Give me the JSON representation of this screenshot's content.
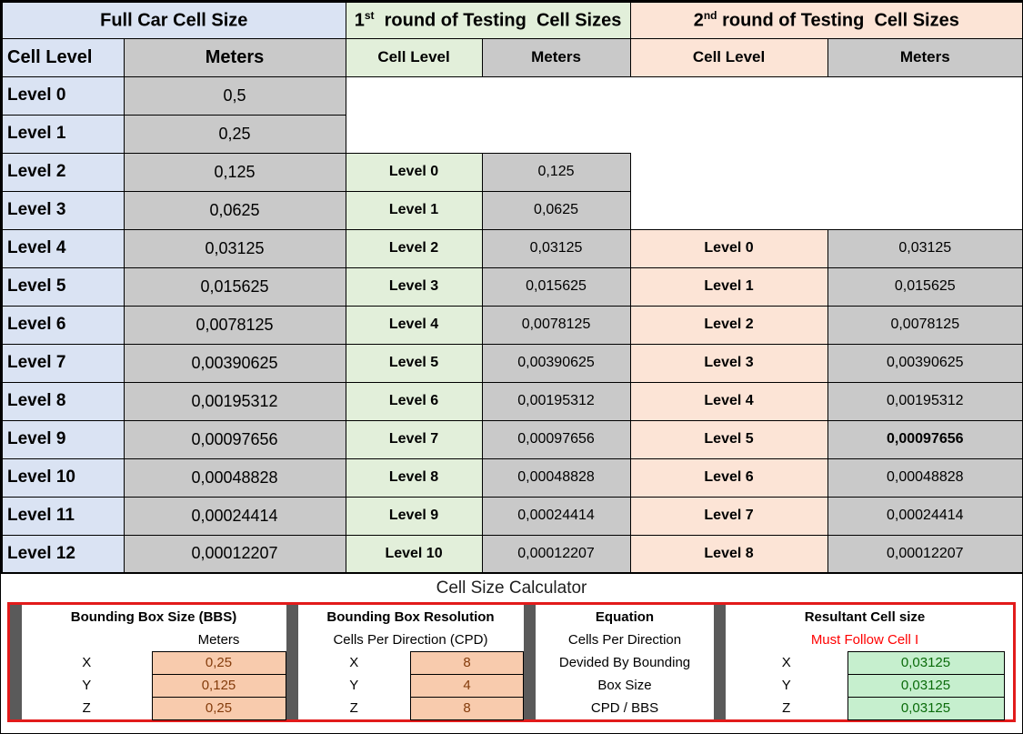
{
  "colors": {
    "full_car_fill": "#dae3f3",
    "round1_fill": "#e2efda",
    "round2_fill": "#fce4d6",
    "meters_fill": "#c9c9c9",
    "input_fill": "#f8cbad",
    "input_text": "#843c0c",
    "result_fill": "#c6efce",
    "result_text": "#0a6b0a",
    "warning_text": "#ff0000",
    "calculator_border": "#e21b1b",
    "separator_bar": "#5a5a5a"
  },
  "main_table": {
    "sections": [
      {
        "title_pre": "Full Car Cell Size",
        "title_sup": "",
        "title_post": ""
      },
      {
        "title_pre": "1",
        "title_sup": "st",
        "title_post": "  round of Testing  Cell Sizes"
      },
      {
        "title_pre": "2",
        "title_sup": "nd",
        "title_post": " round of Testing  Cell Sizes"
      }
    ],
    "columns": [
      "Cell Level",
      "Meters",
      "Cell Level",
      "Meters",
      "Cell Level",
      "Meters"
    ],
    "rows": [
      [
        "Level 0",
        "0,5",
        "",
        "",
        "",
        ""
      ],
      [
        "Level 1",
        "0,25",
        "",
        "",
        "",
        ""
      ],
      [
        "Level 2",
        "0,125",
        "Level 0",
        "0,125",
        "",
        ""
      ],
      [
        "Level 3",
        "0,0625",
        "Level 1",
        "0,0625",
        "",
        ""
      ],
      [
        "Level 4",
        "0,03125",
        "Level 2",
        "0,03125",
        "Level 0",
        "0,03125"
      ],
      [
        "Level 5",
        "0,015625",
        "Level 3",
        "0,015625",
        "Level 1",
        "0,015625"
      ],
      [
        "Level 6",
        "0,0078125",
        "Level 4",
        "0,0078125",
        "Level 2",
        "0,0078125"
      ],
      [
        "Level 7",
        "0,00390625",
        "Level 5",
        "0,00390625",
        "Level 3",
        "0,00390625"
      ],
      [
        "Level 8",
        "0,00195312",
        "Level 6",
        "0,00195312",
        "Level 4",
        "0,00195312"
      ],
      [
        "Level 9",
        "0,00097656",
        "Level 7",
        "0,00097656",
        "Level 5",
        "0,00097656"
      ],
      [
        "Level 10",
        "0,00048828",
        "Level 8",
        "0,00048828",
        "Level 6",
        "0,00048828"
      ],
      [
        "Level 11",
        "0,00024414",
        "Level 9",
        "0,00024414",
        "Level 7",
        "0,00024414"
      ],
      [
        "Level 12",
        "0,00012207",
        "Level 10",
        "0,00012207",
        "Level 8",
        "0,00012207"
      ]
    ],
    "bold_cells": [
      [
        9,
        5
      ]
    ]
  },
  "calculator": {
    "title": "Cell Size Calculator",
    "bbs": {
      "title": "Bounding Box Size (BBS)",
      "subheader": "Meters",
      "rows": [
        [
          "X",
          "0,25"
        ],
        [
          "Y",
          "0,125"
        ],
        [
          "Z",
          "0,25"
        ]
      ]
    },
    "resolution": {
      "title": "Bounding Box Resolution",
      "subheader": "Cells Per Direction (CPD)",
      "rows": [
        [
          "X",
          "8"
        ],
        [
          "Y",
          "4"
        ],
        [
          "Z",
          "8"
        ]
      ]
    },
    "equation": {
      "title": "Equation",
      "lines": [
        "Cells Per Direction",
        "Devided By Bounding",
        "Box Size",
        "CPD / BBS"
      ]
    },
    "resultant": {
      "title": "Resultant Cell size",
      "subheader": "Must Follow Cell I",
      "rows": [
        [
          "X",
          "0,03125"
        ],
        [
          "Y",
          "0,03125"
        ],
        [
          "Z",
          "0,03125"
        ]
      ]
    }
  }
}
